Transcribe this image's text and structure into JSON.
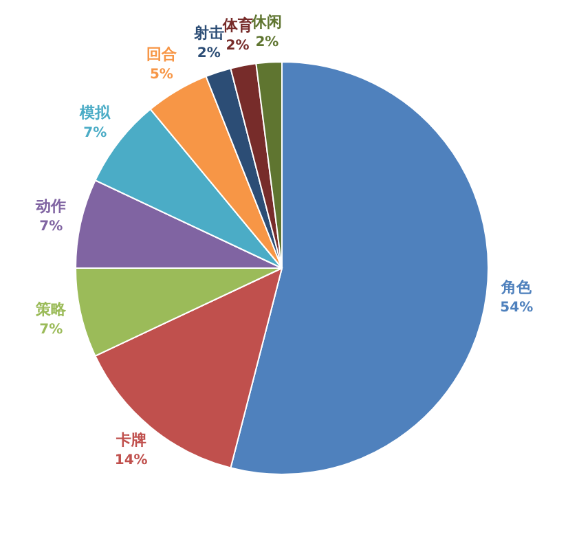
{
  "chart_data": {
    "type": "pie",
    "categories": [
      "角色",
      "卡牌",
      "策略",
      "动作",
      "模拟",
      "回合",
      "射击",
      "体育",
      "休闲"
    ],
    "values": [
      54,
      14,
      7,
      7,
      7,
      5,
      2,
      2,
      2
    ],
    "value_labels": [
      "54%",
      "14%",
      "7%",
      "7%",
      "7%",
      "5%",
      "2%",
      "2%",
      "2%"
    ],
    "colors": [
      "#4f81bd",
      "#c0504d",
      "#9bbb59",
      "#8064a2",
      "#4bacc6",
      "#f79646",
      "#2c4d75",
      "#772c2a",
      "#5f7530"
    ],
    "legend": false
  }
}
